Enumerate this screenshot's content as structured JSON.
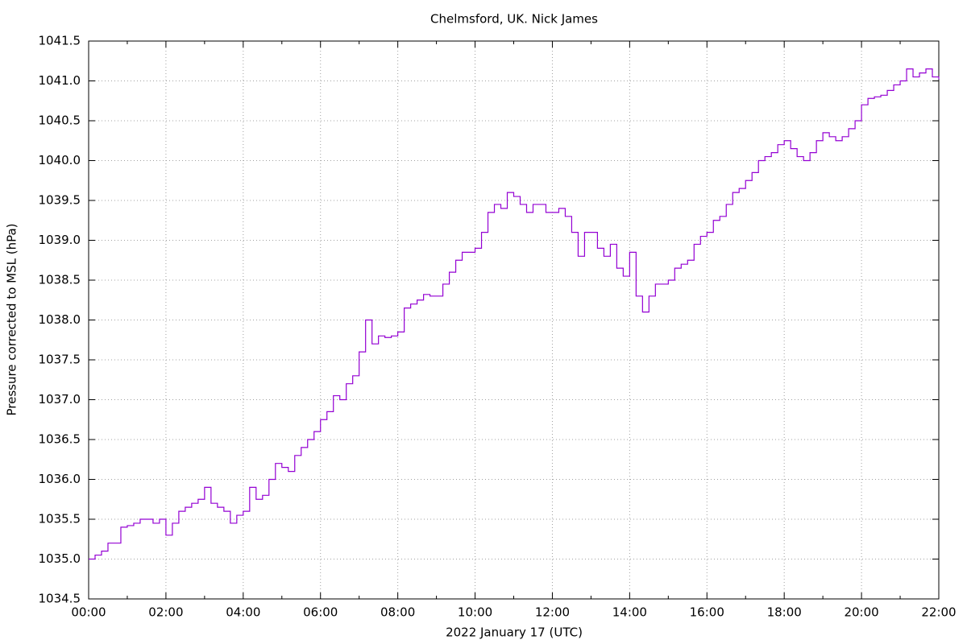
{
  "chart_data": {
    "type": "line",
    "title": "Chelmsford, UK. Nick James",
    "xlabel": "2022 January 17  (UTC)",
    "ylabel": "Pressure corrected to MSL (hPa)",
    "x": [
      0,
      10,
      20,
      30,
      40,
      50,
      60,
      70,
      80,
      90,
      100,
      110,
      120,
      130,
      140,
      150,
      160,
      170,
      180,
      190,
      200,
      210,
      220,
      230,
      240,
      250,
      260,
      270,
      280,
      290,
      300,
      310,
      320,
      330,
      340,
      350,
      360,
      370,
      380,
      390,
      400,
      410,
      420,
      430,
      440,
      450,
      460,
      470,
      480,
      490,
      500,
      510,
      520,
      530,
      540,
      550,
      560,
      570,
      580,
      590,
      600,
      610,
      620,
      630,
      640,
      650,
      660,
      670,
      680,
      690,
      700,
      710,
      720,
      730,
      740,
      750,
      760,
      770,
      780,
      790,
      800,
      810,
      820,
      830,
      840,
      850,
      860,
      870,
      880,
      890,
      900,
      910,
      920,
      930,
      940,
      950,
      960,
      970,
      980,
      990,
      1000,
      1010,
      1020,
      1030,
      1040,
      1050,
      1060,
      1070,
      1080,
      1090,
      1100,
      1110,
      1120,
      1130,
      1140,
      1150,
      1160,
      1170,
      1180,
      1190,
      1200,
      1210,
      1220,
      1230,
      1240,
      1250,
      1260,
      1270,
      1280,
      1290,
      1300,
      1310,
      1320
    ],
    "series": [
      {
        "color": "#9400d3",
        "values": [
          1035.0,
          1035.05,
          1035.1,
          1035.2,
          1035.2,
          1035.4,
          1035.42,
          1035.45,
          1035.5,
          1035.5,
          1035.45,
          1035.5,
          1035.3,
          1035.45,
          1035.6,
          1035.65,
          1035.7,
          1035.75,
          1035.9,
          1035.7,
          1035.65,
          1035.6,
          1035.45,
          1035.55,
          1035.6,
          1035.9,
          1035.75,
          1035.8,
          1036.0,
          1036.2,
          1036.15,
          1036.1,
          1036.3,
          1036.4,
          1036.5,
          1036.6,
          1036.75,
          1036.85,
          1037.05,
          1037.0,
          1037.2,
          1037.3,
          1037.6,
          1038.0,
          1037.7,
          1037.8,
          1037.78,
          1037.8,
          1037.85,
          1038.15,
          1038.2,
          1038.25,
          1038.32,
          1038.3,
          1038.3,
          1038.45,
          1038.6,
          1038.75,
          1038.85,
          1038.85,
          1038.9,
          1039.1,
          1039.35,
          1039.45,
          1039.4,
          1039.6,
          1039.55,
          1039.45,
          1039.35,
          1039.45,
          1039.45,
          1039.35,
          1039.35,
          1039.4,
          1039.3,
          1039.1,
          1038.8,
          1039.1,
          1039.1,
          1038.9,
          1038.8,
          1038.95,
          1038.65,
          1038.55,
          1038.85,
          1038.3,
          1038.1,
          1038.3,
          1038.45,
          1038.45,
          1038.5,
          1038.65,
          1038.7,
          1038.75,
          1038.95,
          1039.05,
          1039.1,
          1039.25,
          1039.3,
          1039.45,
          1039.6,
          1039.65,
          1039.75,
          1039.85,
          1040.0,
          1040.05,
          1040.1,
          1040.2,
          1040.25,
          1040.15,
          1040.05,
          1040.0,
          1040.1,
          1040.25,
          1040.35,
          1040.3,
          1040.25,
          1040.3,
          1040.4,
          1040.5,
          1040.7,
          1040.78,
          1040.8,
          1040.82,
          1040.88,
          1040.95,
          1041.0,
          1041.15,
          1041.05,
          1041.1,
          1041.15,
          1041.05,
          1041.02
        ]
      }
    ],
    "xlim": [
      0,
      1320
    ],
    "xticks": [
      {
        "value": 0,
        "label": "00:00"
      },
      {
        "value": 120,
        "label": "02:00"
      },
      {
        "value": 240,
        "label": "04:00"
      },
      {
        "value": 360,
        "label": "06:00"
      },
      {
        "value": 480,
        "label": "08:00"
      },
      {
        "value": 600,
        "label": "10:00"
      },
      {
        "value": 720,
        "label": "12:00"
      },
      {
        "value": 840,
        "label": "14:00"
      },
      {
        "value": 960,
        "label": "16:00"
      },
      {
        "value": 1080,
        "label": "18:00"
      },
      {
        "value": 1200,
        "label": "20:00"
      },
      {
        "value": 1320,
        "label": "22:00"
      }
    ],
    "ylim": [
      1034.5,
      1041.5
    ],
    "yticks": [
      1034.5,
      {
        "value": 1035,
        "label": "1035.0"
      },
      1035.5,
      {
        "value": 1036,
        "label": "1036.0"
      },
      1036.5,
      {
        "value": 1037,
        "label": "1037.0"
      },
      1037.5,
      {
        "value": 1038,
        "label": "1038.0"
      },
      1038.5,
      {
        "value": 1039,
        "label": "1039.0"
      },
      1039.5,
      {
        "value": 1040,
        "label": "1040.0"
      },
      1040.5,
      {
        "value": 1041,
        "label": "1041.0"
      },
      1041.5
    ],
    "grid": true
  }
}
